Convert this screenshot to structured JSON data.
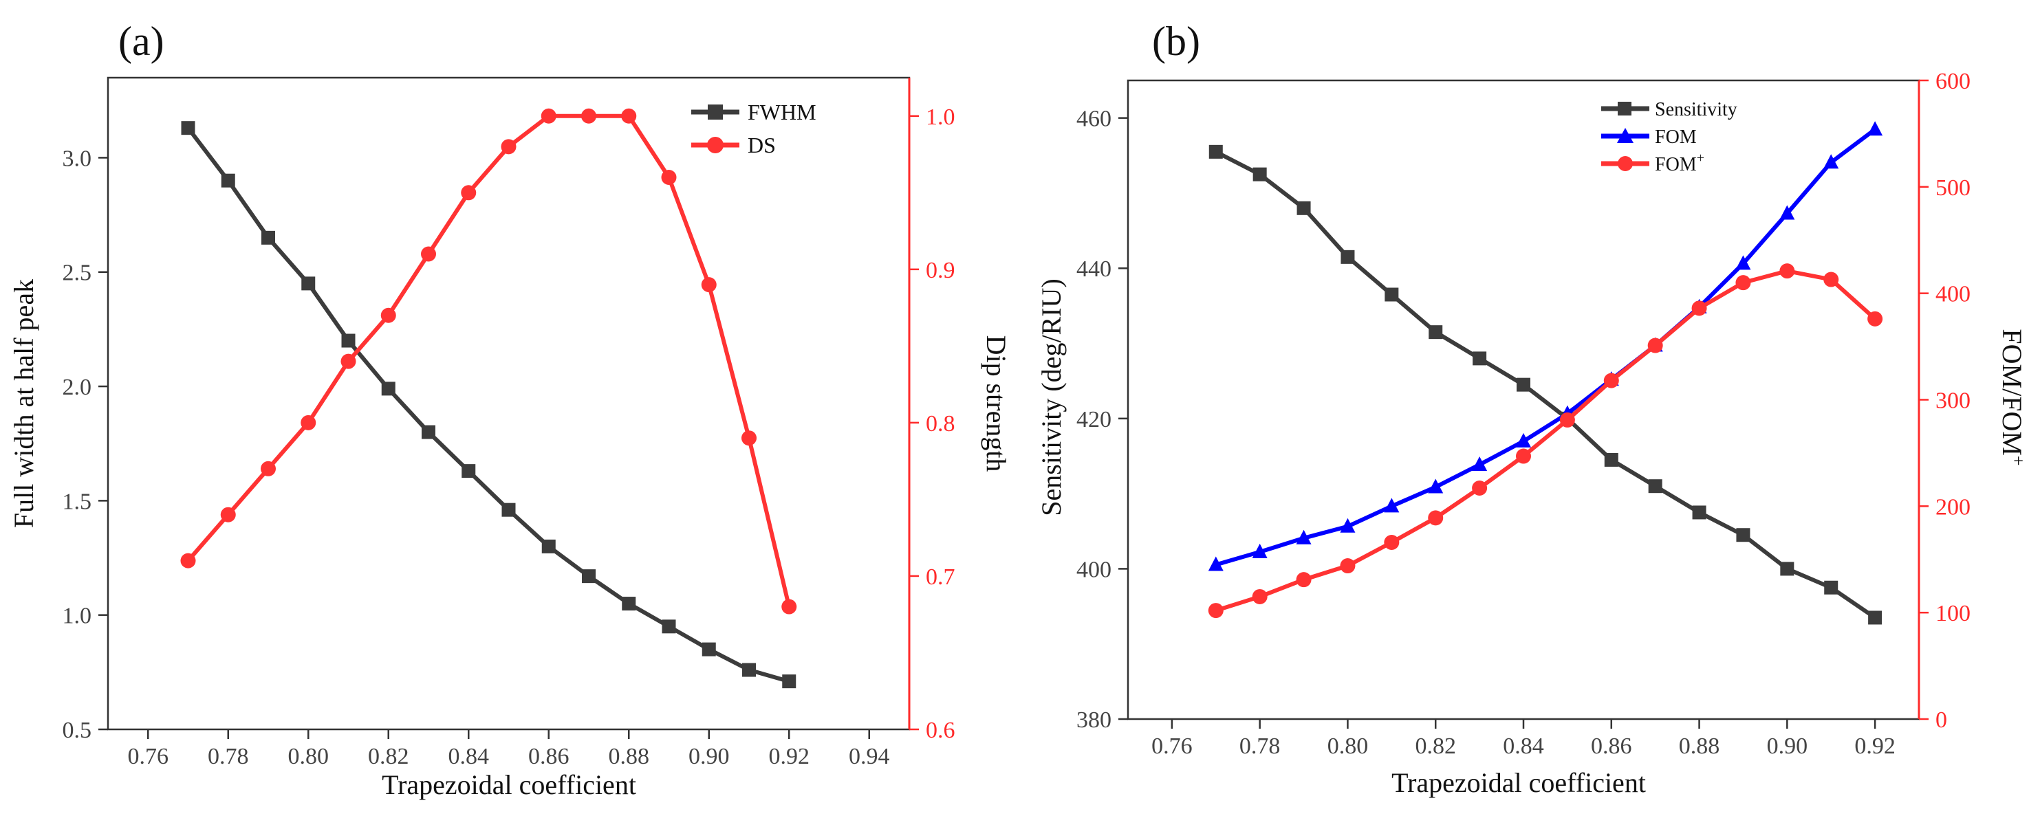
{
  "chart_data": [
    {
      "panel_label": "(a)",
      "type": "line",
      "xlabel": "Trapezoidal coefficient",
      "ylabel": "Full width at half peak",
      "y2label": "Dip strength",
      "xlim": [
        0.75,
        0.95
      ],
      "ylim": [
        0.5,
        3.35
      ],
      "y2lim": [
        0.6,
        1.025
      ],
      "xticks": [
        "0.76",
        "0.78",
        "0.80",
        "0.82",
        "0.84",
        "0.86",
        "0.88",
        "0.90",
        "0.92",
        "0.94"
      ],
      "yticks": [
        "0.5",
        "1.0",
        "1.5",
        "2.0",
        "2.5",
        "3.0"
      ],
      "y2ticks": [
        "0.6",
        "0.7",
        "0.8",
        "0.9",
        "1.0"
      ],
      "series": [
        {
          "name": "FWHM",
          "axis": "left",
          "color": "#3c3c3c",
          "marker": "square",
          "x": [
            0.77,
            0.78,
            0.79,
            0.8,
            0.81,
            0.82,
            0.83,
            0.84,
            0.85,
            0.86,
            0.87,
            0.88,
            0.89,
            0.9,
            0.91,
            0.92
          ],
          "values": [
            3.13,
            2.9,
            2.65,
            2.45,
            2.2,
            1.99,
            1.8,
            1.63,
            1.46,
            1.3,
            1.17,
            1.05,
            0.95,
            0.85,
            0.76,
            0.71
          ]
        },
        {
          "name": "DS",
          "axis": "right",
          "color": "#ff3333",
          "marker": "circle",
          "x": [
            0.77,
            0.78,
            0.79,
            0.8,
            0.81,
            0.82,
            0.83,
            0.84,
            0.85,
            0.86,
            0.87,
            0.88,
            0.89,
            0.9,
            0.91,
            0.92
          ],
          "values": [
            0.71,
            0.74,
            0.77,
            0.8,
            0.84,
            0.87,
            0.91,
            0.95,
            0.98,
            1.0,
            1.0,
            1.0,
            0.96,
            0.89,
            0.79,
            0.68
          ]
        }
      ],
      "legend": [
        {
          "label": "FWHM",
          "sup": ""
        },
        {
          "label": "DS",
          "sup": ""
        }
      ]
    },
    {
      "panel_label": "(b)",
      "type": "line",
      "xlabel": "Trapezoidal coefficient",
      "ylabel": "Sensitivity (deg/RIU)",
      "y2label": "FOM/FOM",
      "y2label_sup": "+",
      "xlim": [
        0.75,
        0.93
      ],
      "ylim": [
        380,
        465
      ],
      "y2lim": [
        0,
        600
      ],
      "xticks": [
        "0.76",
        "0.78",
        "0.80",
        "0.82",
        "0.84",
        "0.86",
        "0.88",
        "0.90",
        "0.92"
      ],
      "yticks": [
        "380",
        "400",
        "420",
        "440",
        "460"
      ],
      "y2ticks": [
        "0",
        "100",
        "200",
        "300",
        "400",
        "500",
        "600"
      ],
      "series": [
        {
          "name": "Sensitivity",
          "axis": "left",
          "color": "#3c3c3c",
          "marker": "square",
          "x": [
            0.77,
            0.78,
            0.79,
            0.8,
            0.81,
            0.82,
            0.83,
            0.84,
            0.85,
            0.86,
            0.87,
            0.88,
            0.89,
            0.9,
            0.91,
            0.92
          ],
          "values": [
            455.5,
            452.5,
            448.0,
            441.5,
            436.5,
            431.5,
            428.0,
            424.5,
            420.0,
            414.5,
            411.0,
            407.5,
            404.5,
            400.0,
            397.5,
            393.5
          ]
        },
        {
          "name": "FOM",
          "axis": "right",
          "color": "#0000ff",
          "marker": "triangle",
          "x": [
            0.77,
            0.78,
            0.79,
            0.8,
            0.81,
            0.82,
            0.83,
            0.84,
            0.85,
            0.86,
            0.87,
            0.88,
            0.89,
            0.9,
            0.91,
            0.92
          ],
          "values": [
            145,
            157,
            170,
            181,
            200,
            218,
            239,
            261,
            287,
            319,
            351,
            387,
            428,
            475,
            523,
            554
          ]
        },
        {
          "name": "FOM+",
          "axis": "right",
          "color": "#ff3333",
          "marker": "circle",
          "x": [
            0.77,
            0.78,
            0.79,
            0.8,
            0.81,
            0.82,
            0.83,
            0.84,
            0.85,
            0.86,
            0.87,
            0.88,
            0.89,
            0.9,
            0.91,
            0.92
          ],
          "values": [
            102,
            115,
            131,
            144,
            166,
            189,
            217,
            247,
            281,
            318,
            351,
            386,
            410,
            421,
            413,
            376
          ]
        }
      ],
      "legend": [
        {
          "label": "Sensitivity",
          "sup": ""
        },
        {
          "label": "FOM",
          "sup": ""
        },
        {
          "label": "FOM",
          "sup": "+"
        }
      ]
    }
  ]
}
